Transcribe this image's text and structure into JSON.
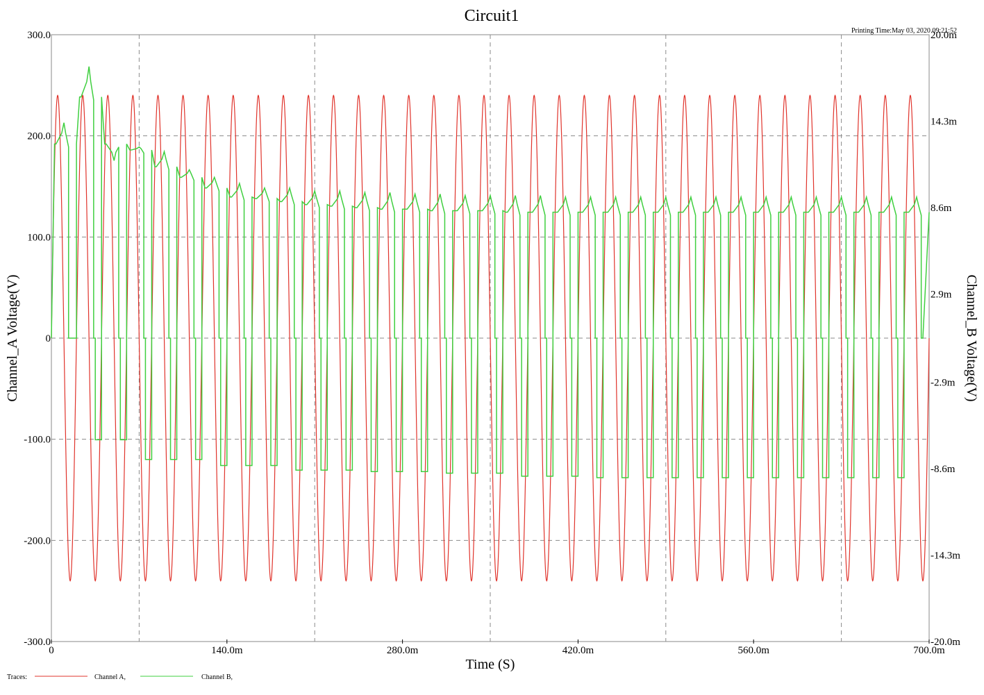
{
  "chart_data": {
    "type": "line",
    "title": "Circuit1",
    "printing_time": "Printing Time:May 03, 2020 09:21:52",
    "xlabel": "Time (S)",
    "ylabel_left": "Channel_A Voltage(V)",
    "ylabel_right": "Channel_B Voltage(V)",
    "xlim": [
      0,
      0.7
    ],
    "ylim_left": [
      -300,
      300
    ],
    "ylim_right": [
      -0.02,
      0.02
    ],
    "x_ticks": [
      {
        "value": 0,
        "label": "0"
      },
      {
        "value": 0.14,
        "label": "140.0m"
      },
      {
        "value": 0.28,
        "label": "280.0m"
      },
      {
        "value": 0.42,
        "label": "420.0m"
      },
      {
        "value": 0.56,
        "label": "560.0m"
      },
      {
        "value": 0.7,
        "label": "700.0m"
      }
    ],
    "x_grid": [
      0.07,
      0.21,
      0.35,
      0.49,
      0.63
    ],
    "y_left_ticks": [
      {
        "value": 300,
        "label": "300.0"
      },
      {
        "value": 200,
        "label": "200.0"
      },
      {
        "value": 100,
        "label": "100.0"
      },
      {
        "value": 0,
        "label": "0"
      },
      {
        "value": -100,
        "label": "-100.0"
      },
      {
        "value": -200,
        "label": "-200.0"
      },
      {
        "value": -300,
        "label": "-300.0"
      }
    ],
    "y_right_ticks": [
      {
        "value": 0.02,
        "label": "20.0m"
      },
      {
        "value": 0.0143,
        "label": "14.3m"
      },
      {
        "value": 0.0086,
        "label": "8.6m"
      },
      {
        "value": 0.0029,
        "label": "2.9m"
      },
      {
        "value": -0.0029,
        "label": "-2.9m"
      },
      {
        "value": -0.0086,
        "label": "-8.6m"
      },
      {
        "value": -0.0143,
        "label": "-14.3m"
      },
      {
        "value": -0.02,
        "label": "-20.0m"
      }
    ],
    "grid": true,
    "legend": {
      "placement": "bottom-left",
      "label": "Traces:",
      "entries": [
        "Channel A,",
        "Channel B,"
      ]
    },
    "series": [
      {
        "name": "Channel A",
        "axis": "left",
        "color": "#e0332b",
        "kind": "sine",
        "amplitude": 240,
        "frequency_hz": 50,
        "phase_deg": 0
      },
      {
        "name": "Channel B",
        "axis": "right",
        "color": "#3fcf3f",
        "kind": "cycle_peaks",
        "period": 0.02,
        "first_cycle_start": 0.0025,
        "peak_at_cycle_offset": 0.0075,
        "drop_at_cycle_offset": 0.0112,
        "negative_step_start": 0.0125,
        "negative_step_end": 0.0175,
        "positive_levels": [
          0.0128,
          0.0159,
          0.0128,
          0.0124,
          0.0113,
          0.0106,
          0.0099,
          0.0093,
          0.0092,
          0.009,
          0.0088,
          0.0087,
          0.0086,
          0.0085,
          0.0085,
          0.0084,
          0.0084,
          0.0084,
          0.0083,
          0.0083,
          0.0083,
          0.0083,
          0.0083,
          0.0083,
          0.0083,
          0.0083,
          0.0083,
          0.0083,
          0.0083,
          0.0083,
          0.0083,
          0.0083,
          0.0083,
          0.0083,
          0.0083
        ],
        "peak_values": [
          0.0142,
          0.0179,
          0.0117,
          0.0126,
          0.0123,
          0.0111,
          0.0106,
          0.0102,
          0.0099,
          0.0099,
          0.0097,
          0.0097,
          0.0096,
          0.0096,
          0.0095,
          0.0095,
          0.0094,
          0.0094,
          0.0094,
          0.0094,
          0.0093,
          0.0093,
          0.0093,
          0.0093,
          0.0093,
          0.0093,
          0.0093,
          0.0093,
          0.0093,
          0.0093,
          0.0093,
          0.0093,
          0.0093,
          0.0093,
          0.0093
        ],
        "negative_levels": [
          0.0,
          -0.0067,
          -0.0067,
          -0.008,
          -0.008,
          -0.008,
          -0.0084,
          -0.0084,
          -0.0084,
          -0.0087,
          -0.0087,
          -0.0087,
          -0.0088,
          -0.0088,
          -0.0088,
          -0.0089,
          -0.0089,
          -0.0089,
          -0.0091,
          -0.0091,
          -0.0091,
          -0.0092,
          -0.0092,
          -0.0092,
          -0.0092,
          -0.0092,
          -0.0092,
          -0.0092,
          -0.0092,
          -0.0092,
          -0.0092,
          -0.0092,
          -0.0092,
          -0.0092
        ]
      }
    ]
  }
}
